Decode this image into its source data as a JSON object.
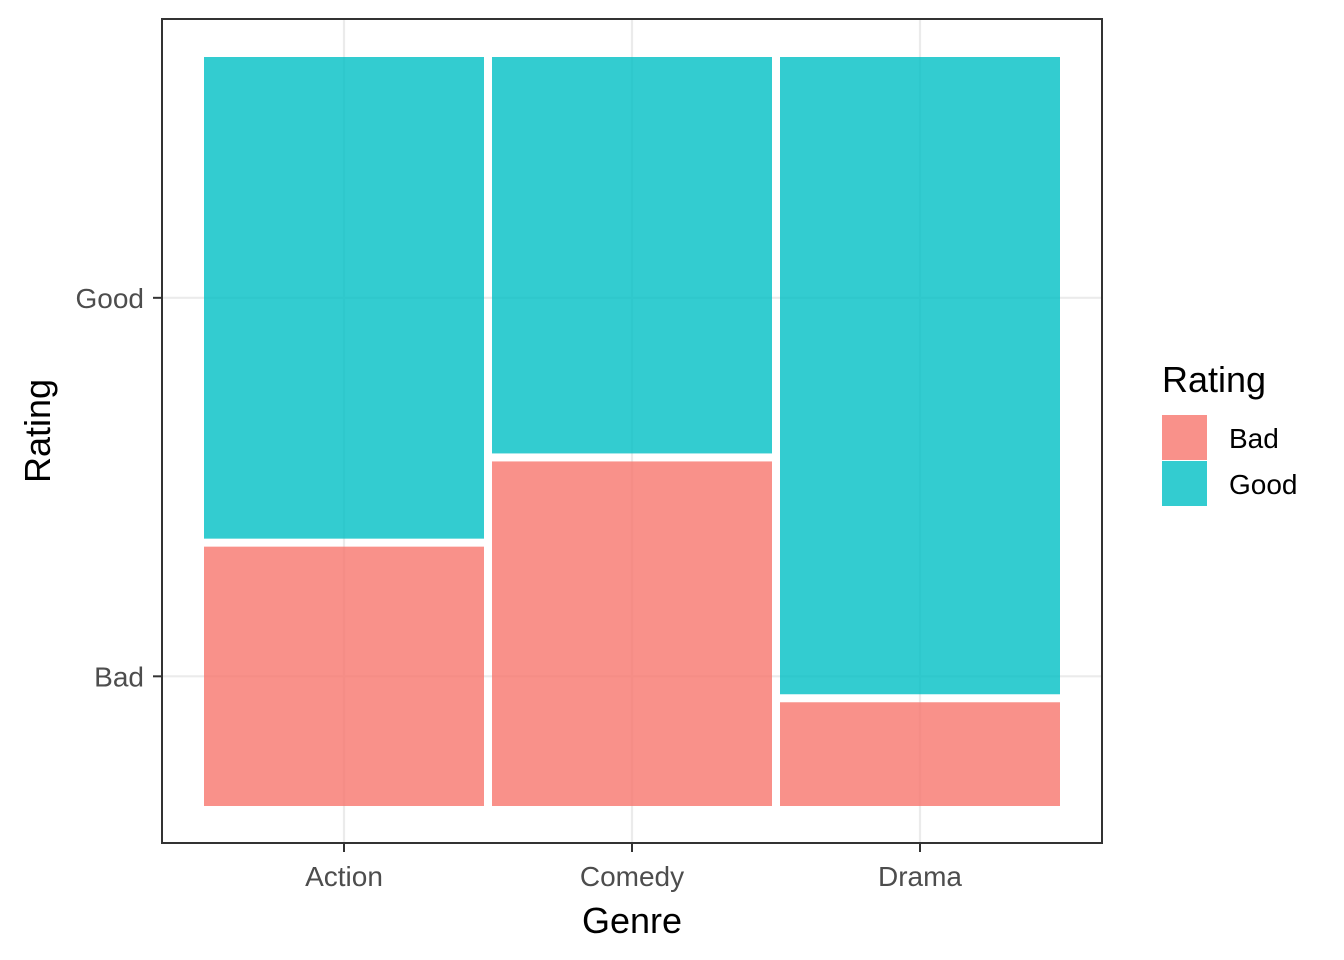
{
  "chart_data": {
    "type": "mosaic",
    "title": "",
    "xlabel": "Genre",
    "ylabel": "Rating",
    "categories": [
      "Action",
      "Comedy",
      "Drama"
    ],
    "levels": [
      "Bad",
      "Good"
    ],
    "column_widths": [
      0.333,
      0.333,
      0.333
    ],
    "series": [
      {
        "name": "Bad",
        "color": "#F8766D",
        "values": [
          0.35,
          0.465,
          0.14
        ]
      },
      {
        "name": "Good",
        "color": "#00BFC4",
        "values": [
          0.65,
          0.535,
          0.86
        ]
      }
    ],
    "yticks": [
      "Bad",
      "Good"
    ],
    "grid": true,
    "legend": {
      "title": "Rating",
      "position": "right",
      "entries": [
        "Bad",
        "Good"
      ]
    }
  }
}
